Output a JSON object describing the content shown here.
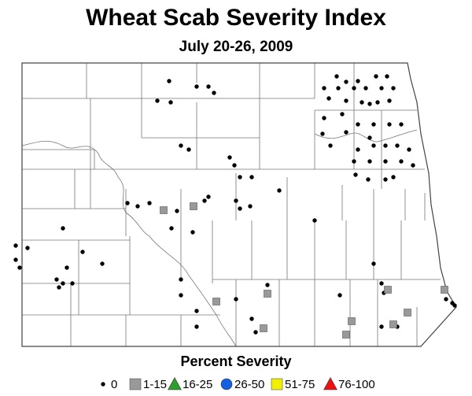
{
  "title": "Wheat Scab Severity Index",
  "subtitle": "July 20-26, 2009",
  "legend": {
    "title": "Percent Severity",
    "items": [
      {
        "label": "0",
        "shape": "dot",
        "color": "#000000"
      },
      {
        "label": "1-15",
        "shape": "square",
        "color": "#999999"
      },
      {
        "label": "16-25",
        "shape": "triangle",
        "color": "#2e9e2e"
      },
      {
        "label": "26-50",
        "shape": "circle",
        "color": "#1560e0"
      },
      {
        "label": "51-75",
        "shape": "square",
        "color": "#f0f000"
      },
      {
        "label": "76-100",
        "shape": "triangle",
        "color": "#ee1111"
      }
    ]
  }
}
